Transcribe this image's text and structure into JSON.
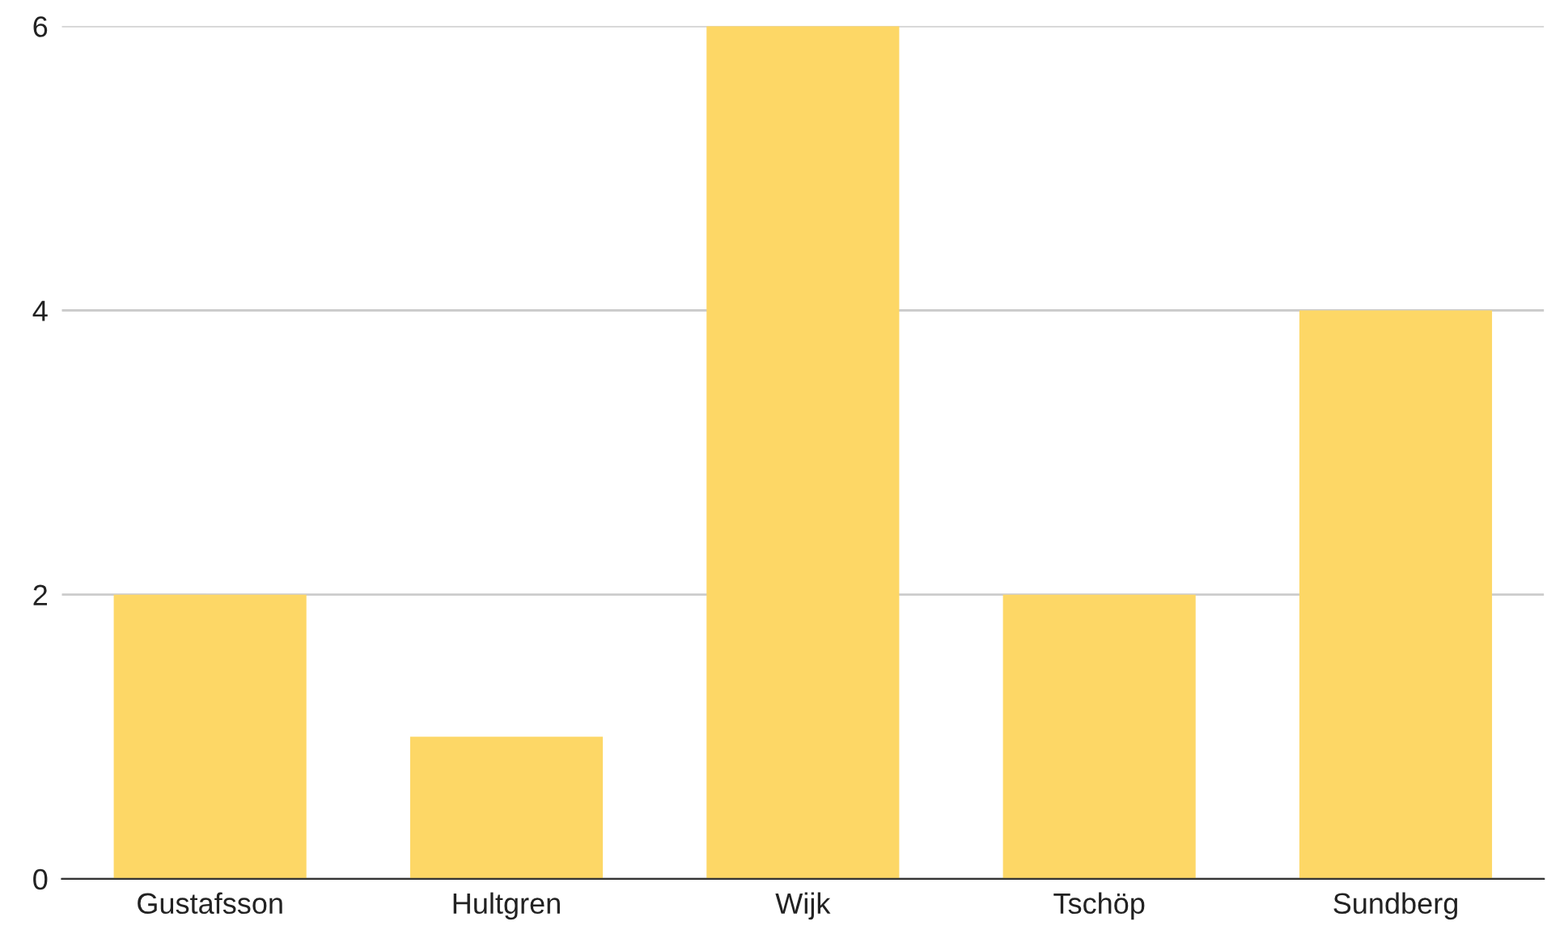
{
  "chart_data": {
    "type": "bar",
    "categories": [
      "Gustafsson",
      "Hultgren",
      "Wijk",
      "Tschöp",
      "Sundberg"
    ],
    "values": [
      2,
      1,
      6,
      2,
      4
    ],
    "color": "#fdd766",
    "ylim": [
      0,
      6
    ],
    "yticks": [
      0,
      2,
      4,
      6
    ],
    "grid": "y",
    "legend": false
  }
}
